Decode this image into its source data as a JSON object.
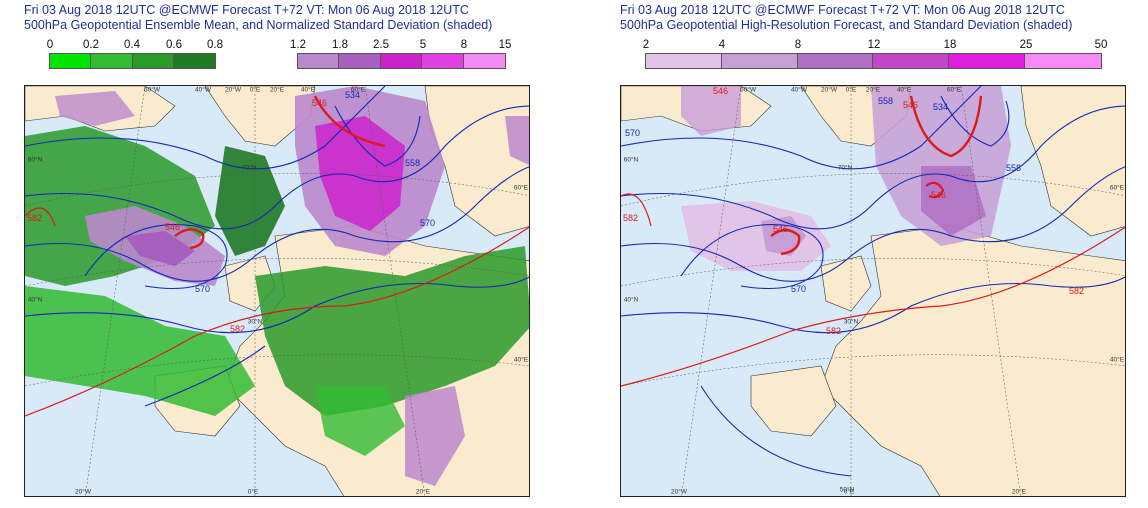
{
  "panels": [
    {
      "title_line1": "Fri 03 Aug 2018 12UTC @ECMWF Forecast T+72 VT: Mon 06 Aug 2018 12UTC",
      "title_line2": "500hPa Geopotential Ensemble Mean, and Normalized Standard Deviation (shaded)",
      "colorbars": [
        {
          "name": "ensemble-mean-spread",
          "ticks": [
            "0",
            "0.2",
            "0.4",
            "0.6",
            "0.8"
          ],
          "colors": [
            "#00e400",
            "#33bb33",
            "#2a9a2a",
            "#1f7a25"
          ]
        },
        {
          "name": "normalized-std-dev",
          "ticks": [
            "1.2",
            "1.8",
            "2.5",
            "5",
            "8",
            "15"
          ],
          "colors": [
            "#bb88cc",
            "#a860c0",
            "#cc22cc",
            "#e040e0",
            "#f48af4"
          ]
        }
      ],
      "contour_labels": [
        "546",
        "570",
        "558",
        "534",
        "546",
        "570",
        "582",
        "582",
        "546",
        "558"
      ],
      "grid_labels": {
        "lon_top": [
          "60°W",
          "40°W",
          "20°W",
          "0°E",
          "20°E",
          "40°E",
          "60°E"
        ],
        "lon_bottom": [
          "20°W",
          "0°E",
          "20°E"
        ],
        "lat": [
          "60°N",
          "40°N",
          "70°N",
          "50°N",
          "30°N"
        ],
        "right": [
          "60°E",
          "40°E"
        ]
      }
    },
    {
      "title_line1": "Fri 03 Aug 2018 12UTC @ECMWF Forecast T+72 VT: Mon 06 Aug 2018 12UTC",
      "title_line2": "500hPa Geopotential High-Resolution Forecast, and Standard Deviation (shaded)",
      "colorbars": [
        {
          "name": "standard-deviation",
          "ticks": [
            "2",
            "4",
            "8",
            "12",
            "18",
            "25",
            "50"
          ],
          "colors": [
            "#e2c2e6",
            "#c79fd6",
            "#b070c4",
            "#c246c8",
            "#e020e0",
            "#f78af7"
          ]
        }
      ],
      "contour_labels": [
        "546",
        "558",
        "546",
        "534",
        "570",
        "546",
        "570",
        "582",
        "582",
        "582",
        "546",
        "558"
      ],
      "grid_labels": {
        "lon_top": [
          "60°W",
          "40°W",
          "20°W",
          "0°E",
          "20°E",
          "40°E",
          "60°E"
        ],
        "lon_bottom": [
          "20°W",
          "0°E",
          "20°E"
        ],
        "lat": [
          "60°N",
          "40°N",
          "70°N",
          "50°N",
          "30°N"
        ],
        "right": [
          "60°E",
          "40°E"
        ]
      }
    }
  ],
  "colors": {
    "ocean": "#d8e9f7",
    "land": "#faebcf",
    "contour": "#1428b4",
    "contour_red": "#dd1a1a",
    "title": "#1f2f9a"
  }
}
